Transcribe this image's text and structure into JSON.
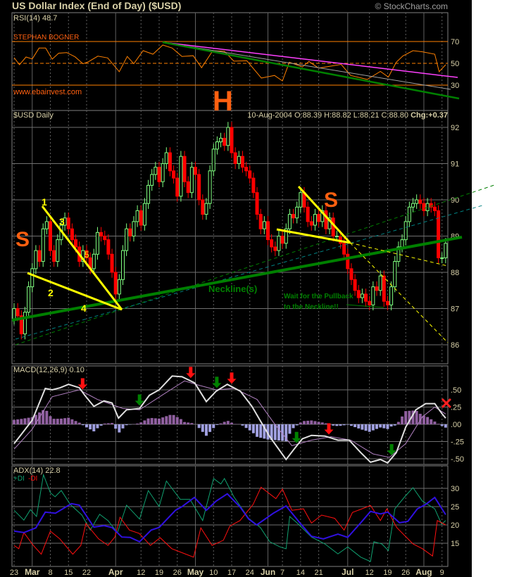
{
  "header": {
    "title": "US Dollar Index (End of Day) ($USD)",
    "watermark": "© StockCharts.com"
  },
  "colors": {
    "background": "#000000",
    "up_candle": "#80ff80",
    "down_candle": "#ff0000",
    "rsi": "#ff8000",
    "macd": "#e0e0e0",
    "signal": "#b080c0",
    "hist_pos": "#9060a0",
    "hist_neg": "#a0a0e0",
    "adx": "#3010e0",
    "plus_di": "#10a070",
    "minus_di": "#ff1010",
    "neckline": "#008000",
    "pattern": "#ffff00",
    "annotation": "#ff6010"
  },
  "rsi": {
    "label": "RSI(14) 48.7",
    "author": "STEPHAN BOGNER",
    "website": "www.ebainvest.com",
    "ticks": [
      "70",
      "50",
      "30"
    ],
    "points": [
      [
        0,
        55.2
      ],
      [
        1.5,
        48.7
      ],
      [
        3.3,
        55.8
      ],
      [
        5,
        54
      ],
      [
        6.9,
        64
      ],
      [
        8.7,
        64
      ],
      [
        10.5,
        53.8
      ],
      [
        12.3,
        59.3
      ],
      [
        14.5,
        59.9
      ],
      [
        16.8,
        56
      ],
      [
        19,
        49.6
      ],
      [
        20.4,
        51.3
      ],
      [
        23.1,
        56.6
      ],
      [
        25.8,
        55
      ],
      [
        29,
        42.3
      ],
      [
        31.2,
        56.3
      ],
      [
        33,
        49.6
      ],
      [
        35.6,
        61.6
      ],
      [
        38.3,
        58.4
      ],
      [
        41,
        66.8
      ],
      [
        43.6,
        64
      ],
      [
        46.3,
        56.3
      ],
      [
        49.4,
        57
      ],
      [
        51.7,
        46
      ],
      [
        54.8,
        61.6
      ],
      [
        58,
        61
      ],
      [
        60.6,
        52
      ],
      [
        64.2,
        52.3
      ],
      [
        68.2,
        36.5
      ],
      [
        71.8,
        38.9
      ],
      [
        74,
        33.9
      ],
      [
        75.9,
        51
      ],
      [
        79.5,
        46.7
      ],
      [
        81.3,
        51.7
      ],
      [
        84,
        45.6
      ],
      [
        90.2,
        49
      ],
      [
        92.8,
        38.9
      ],
      [
        97.4,
        35.2
      ],
      [
        101,
        42.6
      ],
      [
        103.2,
        37.4
      ],
      [
        105.4,
        51
      ],
      [
        107.2,
        56.8
      ],
      [
        110,
        61.6
      ],
      [
        112.6,
        60.6
      ],
      [
        116,
        58.4
      ],
      [
        117.2,
        42.3
      ],
      [
        119,
        48.7
      ]
    ]
  },
  "price": {
    "label": "$USD Daily",
    "quote": {
      "date": "10-Aug-2004",
      "open": "O:88.39",
      "high": "H:88.82",
      "low": "L:88.21",
      "close": "C:88.80",
      "change": "Chg:+0.37"
    },
    "ticks": [
      "92",
      "91",
      "90",
      "89",
      "88",
      "87",
      "86"
    ],
    "closes": [
      87.0,
      86.8,
      86.3,
      86.9,
      87.6,
      88.1,
      88.6,
      88.3,
      89.2,
      89.4,
      88.6,
      88.3,
      88.9,
      89.3,
      89.5,
      89.2,
      88.9,
      88.7,
      88.3,
      88.6,
      88.4,
      88.1,
      88.5,
      89.1,
      89.0,
      88.9,
      88.5,
      88.0,
      87.4,
      87.8,
      88.6,
      89.2,
      89.0,
      89.4,
      89.7,
      89.3,
      89.9,
      90.4,
      90.7,
      90.9,
      90.5,
      91.0,
      91.3,
      90.8,
      90.6,
      90.1,
      91.2,
      90.5,
      90.2,
      90.9,
      90.7,
      90.0,
      89.6,
      89.9,
      90.8,
      91.4,
      91.6,
      91.7,
      91.5,
      92.0,
      91.3,
      91.0,
      91.2,
      90.9,
      90.8,
      90.6,
      90.2,
      89.6,
      89.2,
      89.4,
      88.9,
      88.7,
      88.6,
      89.0,
      88.8,
      89.2,
      89.6,
      89.5,
      89.8,
      90.2,
      89.8,
      89.4,
      89.3,
      89.6,
      89.4,
      89.7,
      89.2,
      89.5,
      89.0,
      89.0,
      88.8,
      88.5,
      88.1,
      87.8,
      87.5,
      87.3,
      87.4,
      87.2,
      87.1,
      87.6,
      87.5,
      87.9,
      87.2,
      87.1,
      87.6,
      88.3,
      88.7,
      88.9,
      89.4,
      89.8,
      89.9,
      90.0,
      89.9,
      89.7,
      89.9,
      89.8,
      89.7,
      88.4,
      88.4,
      88.8
    ],
    "annotations": {
      "left_shoulder": "S",
      "head": "H",
      "right_shoulder": "S",
      "wave_labels": [
        "1",
        "2",
        "3",
        "4",
        "5"
      ],
      "neckline": "Neckline(s)",
      "note_line1": "Wait for the Pullback",
      "note_line2": "to the Neckline!!"
    }
  },
  "macd": {
    "label": "MACD(12,26,9) 0.10",
    "ticks": [
      ".50",
      ".25",
      ".00",
      "-.25",
      "-.50"
    ],
    "macd_line": [
      [
        0,
        -0.28
      ],
      [
        1.5,
        -0.18
      ],
      [
        5,
        0.06
      ],
      [
        8.6,
        0.52
      ],
      [
        10.5,
        0.5
      ],
      [
        12.7,
        0.53
      ],
      [
        15,
        0.58
      ],
      [
        18,
        0.53
      ],
      [
        19.5,
        0.42
      ],
      [
        22,
        0.26
      ],
      [
        24.8,
        0.34
      ],
      [
        27,
        0.31
      ],
      [
        28.8,
        0.09
      ],
      [
        31,
        0.21
      ],
      [
        34.6,
        0.23
      ],
      [
        37.3,
        0.42
      ],
      [
        40,
        0.5
      ],
      [
        43.6,
        0.7
      ],
      [
        46.3,
        0.69
      ],
      [
        49.8,
        0.6
      ],
      [
        53,
        0.33
      ],
      [
        55.7,
        0.48
      ],
      [
        58.8,
        0.58
      ],
      [
        62.4,
        0.48
      ],
      [
        65.6,
        0.26
      ],
      [
        67.8,
        0.06
      ],
      [
        70.5,
        -0.18
      ],
      [
        75,
        -0.51
      ],
      [
        77.2,
        -0.36
      ],
      [
        79.5,
        -0.21
      ],
      [
        82,
        -0.16
      ],
      [
        85.7,
        -0.17
      ],
      [
        89.3,
        -0.23
      ],
      [
        92.4,
        -0.23
      ],
      [
        95.6,
        -0.41
      ],
      [
        98.3,
        -0.55
      ],
      [
        101,
        -0.51
      ],
      [
        103,
        -0.56
      ],
      [
        105.4,
        -0.41
      ],
      [
        108,
        -0.04
      ],
      [
        110.8,
        0.21
      ],
      [
        113.5,
        0.3
      ],
      [
        116,
        0.3
      ],
      [
        117.9,
        0.16
      ],
      [
        119,
        0.09
      ]
    ],
    "signal_line": [
      [
        0,
        -0.36
      ],
      [
        5,
        -0.07
      ],
      [
        10.5,
        0.4
      ],
      [
        18,
        0.5
      ],
      [
        23,
        0.36
      ],
      [
        30,
        0.23
      ],
      [
        34.6,
        0.21
      ],
      [
        41,
        0.43
      ],
      [
        47,
        0.63
      ],
      [
        50.7,
        0.57
      ],
      [
        55.7,
        0.5
      ],
      [
        60.7,
        0.52
      ],
      [
        67,
        0.36
      ],
      [
        71.5,
        0.03
      ],
      [
        76.6,
        -0.31
      ],
      [
        82,
        -0.23
      ],
      [
        87.4,
        -0.18
      ],
      [
        92.8,
        -0.23
      ],
      [
        99,
        -0.43
      ],
      [
        103.5,
        -0.48
      ],
      [
        108,
        -0.28
      ],
      [
        112.6,
        0.11
      ],
      [
        116,
        0.25
      ],
      [
        119,
        0.15
      ]
    ],
    "signals": [
      {
        "type": "sell",
        "i": 18.9
      },
      {
        "type": "sell",
        "i": 48.7
      },
      {
        "type": "buy",
        "i": 55.9
      },
      {
        "type": "sell",
        "i": 60
      },
      {
        "type": "buy",
        "i": 34.6
      },
      {
        "type": "buy",
        "i": 77.9
      },
      {
        "type": "sell",
        "i": 86.8
      },
      {
        "type": "buy",
        "i": 104.1
      },
      {
        "type": "cross",
        "i": 119.2
      }
    ]
  },
  "adx": {
    "label": "ADX(14) 22.8",
    "plus_label": "+DI",
    "minus_label": "-DI",
    "ticks": [
      "30",
      "25",
      "20",
      "15"
    ],
    "adx_line": [
      [
        0,
        18.3
      ],
      [
        2.7,
        17.9
      ],
      [
        6,
        19.2
      ],
      [
        8.6,
        23.5
      ],
      [
        11.4,
        23.2
      ],
      [
        15.8,
        25.8
      ],
      [
        18,
        25.4
      ],
      [
        22,
        19.4
      ],
      [
        24.8,
        19.8
      ],
      [
        27,
        19.3
      ],
      [
        29.7,
        16.7
      ],
      [
        32,
        16.6
      ],
      [
        34.6,
        15.4
      ],
      [
        37.8,
        18.6
      ],
      [
        40,
        19.3
      ],
      [
        44.5,
        24
      ],
      [
        46.3,
        25
      ],
      [
        49.7,
        27.5
      ],
      [
        53,
        24
      ],
      [
        55.7,
        26.5
      ],
      [
        58.8,
        28.5
      ],
      [
        62.4,
        24.8
      ],
      [
        64.7,
        21.6
      ],
      [
        66.9,
        20
      ],
      [
        71.5,
        23.2
      ],
      [
        75,
        25.2
      ],
      [
        78.6,
        20.8
      ],
      [
        82,
        16.9
      ],
      [
        85.3,
        16.2
      ],
      [
        89.3,
        17.5
      ],
      [
        92,
        16.6
      ],
      [
        95.6,
        20.6
      ],
      [
        98.3,
        23.7
      ],
      [
        101,
        23
      ],
      [
        103,
        23.5
      ],
      [
        106.3,
        20.6
      ],
      [
        108.6,
        21
      ],
      [
        111.2,
        24.4
      ],
      [
        113.5,
        25.6
      ],
      [
        116,
        27.5
      ],
      [
        119,
        22.8
      ]
    ],
    "plus_di": [
      [
        0,
        24
      ],
      [
        2.7,
        21.3
      ],
      [
        4.5,
        24.2
      ],
      [
        6.2,
        22.3
      ],
      [
        8.1,
        33.7
      ],
      [
        10,
        28.8
      ],
      [
        11.3,
        27.7
      ],
      [
        13,
        29.4
      ],
      [
        15.5,
        25.6
      ],
      [
        18.7,
        22.7
      ],
      [
        21,
        18.6
      ],
      [
        23.6,
        22.9
      ],
      [
        25.9,
        21.2
      ],
      [
        28.5,
        17.9
      ],
      [
        31,
        25.4
      ],
      [
        34.6,
        21.6
      ],
      [
        37,
        29.4
      ],
      [
        40,
        25
      ],
      [
        42,
        32
      ],
      [
        45.8,
        27
      ],
      [
        48.5,
        27
      ],
      [
        52,
        21.2
      ],
      [
        55,
        32.7
      ],
      [
        57,
        31.2
      ],
      [
        58,
        32.7
      ],
      [
        60.6,
        27.7
      ],
      [
        64.7,
        21.8
      ],
      [
        67.9,
        19.3
      ],
      [
        70.5,
        15.4
      ],
      [
        73.3,
        14
      ],
      [
        75,
        13.5
      ],
      [
        76,
        22.3
      ],
      [
        78.2,
        20.4
      ],
      [
        82,
        16.7
      ],
      [
        85.7,
        14.8
      ],
      [
        89.3,
        12.1
      ],
      [
        92,
        14
      ],
      [
        95.6,
        11.2
      ],
      [
        98.3,
        10
      ],
      [
        99.2,
        15.4
      ],
      [
        101.4,
        14.8
      ],
      [
        103.2,
        13
      ],
      [
        105,
        24.4
      ],
      [
        107.7,
        27.7
      ],
      [
        110,
        30.2
      ],
      [
        112.6,
        26.5
      ],
      [
        116,
        24.4
      ],
      [
        117.9,
        20.2
      ],
      [
        119,
        21.2
      ]
    ],
    "minus_di": [
      [
        0,
        14.4
      ],
      [
        1.3,
        13.5
      ],
      [
        2.7,
        17.9
      ],
      [
        5.3,
        14.4
      ],
      [
        7.5,
        12
      ],
      [
        10,
        18.3
      ],
      [
        12.6,
        16.2
      ],
      [
        16.2,
        12
      ],
      [
        18.4,
        14.4
      ],
      [
        19.8,
        20.4
      ],
      [
        23.3,
        16.2
      ],
      [
        25.9,
        14.4
      ],
      [
        27.8,
        16.7
      ],
      [
        29.2,
        22.1
      ],
      [
        31.8,
        18.6
      ],
      [
        34.5,
        17.7
      ],
      [
        37.6,
        14.4
      ],
      [
        40.3,
        16.5
      ],
      [
        43.5,
        13.5
      ],
      [
        47.4,
        12
      ],
      [
        49.5,
        11.2
      ],
      [
        51.5,
        19.2
      ],
      [
        54.6,
        14.4
      ],
      [
        57.7,
        15.8
      ],
      [
        59.5,
        19.7
      ],
      [
        62.3,
        21.2
      ],
      [
        65.9,
        25.6
      ],
      [
        68.1,
        30.3
      ],
      [
        72.2,
        27.2
      ],
      [
        74,
        29.8
      ],
      [
        76.6,
        24
      ],
      [
        79.8,
        24.4
      ],
      [
        82,
        20.5
      ],
      [
        84.8,
        22.7
      ],
      [
        88.4,
        21.8
      ],
      [
        91,
        18.6
      ],
      [
        93.3,
        23.4
      ],
      [
        98.3,
        25.3
      ],
      [
        101,
        21.2
      ],
      [
        102.8,
        24.4
      ],
      [
        105.5,
        19.3
      ],
      [
        110,
        14.8
      ],
      [
        112.6,
        13.5
      ],
      [
        115.4,
        11.5
      ],
      [
        116.7,
        21.2
      ],
      [
        119,
        20
      ]
    ]
  },
  "x_axis": [
    {
      "label": "23",
      "i": 0,
      "month": false
    },
    {
      "label": "Mar",
      "i": 5,
      "month": true
    },
    {
      "label": "8",
      "i": 10,
      "month": false
    },
    {
      "label": "15",
      "i": 15,
      "month": false
    },
    {
      "label": "22",
      "i": 20,
      "month": false
    },
    {
      "label": "Apr",
      "i": 28,
      "month": true
    },
    {
      "label": "12",
      "i": 35,
      "month": false
    },
    {
      "label": "19",
      "i": 40,
      "month": false
    },
    {
      "label": "26",
      "i": 45,
      "month": false
    },
    {
      "label": "May",
      "i": 50,
      "month": true
    },
    {
      "label": "10",
      "i": 55,
      "month": false
    },
    {
      "label": "17",
      "i": 60,
      "month": false
    },
    {
      "label": "24",
      "i": 65,
      "month": false
    },
    {
      "label": "Jun",
      "i": 70,
      "month": true
    },
    {
      "label": "7",
      "i": 74,
      "month": false
    },
    {
      "label": "14",
      "i": 79,
      "month": false
    },
    {
      "label": "21",
      "i": 84,
      "month": false
    },
    {
      "label": "Jul",
      "i": 92,
      "month": true
    },
    {
      "label": "12",
      "i": 98,
      "month": false
    },
    {
      "label": "19",
      "i": 103,
      "month": false
    },
    {
      "label": "26",
      "i": 108,
      "month": false
    },
    {
      "label": "Aug",
      "i": 113,
      "month": true
    },
    {
      "label": "9",
      "i": 118,
      "month": false
    }
  ]
}
